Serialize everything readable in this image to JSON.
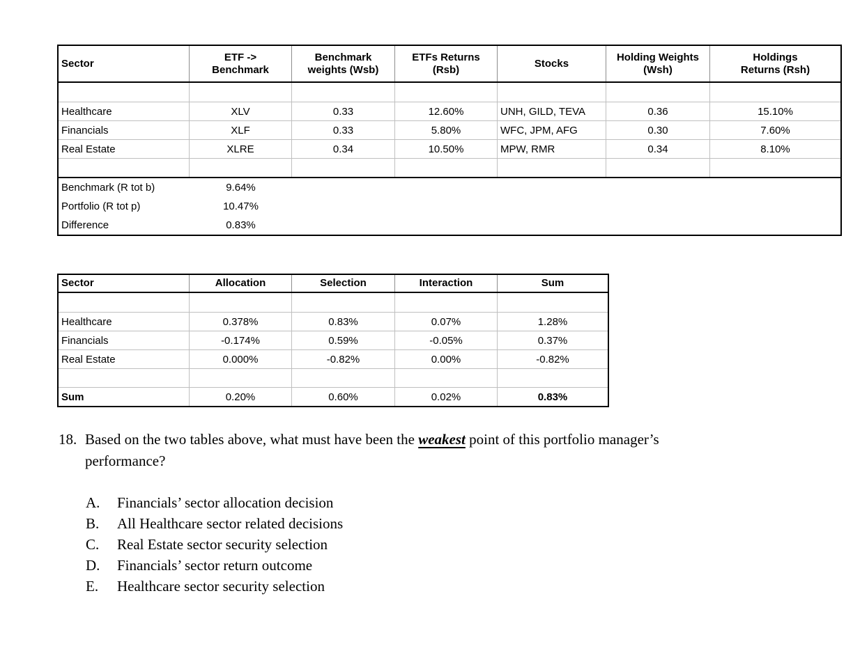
{
  "colors": {
    "background": "#ffffff",
    "text": "#000000",
    "table_border": "#000000",
    "gridline": "#bfbfbf",
    "header_divider": "#8c8c8c"
  },
  "table1": {
    "headers": [
      "Sector",
      "ETF ->\nBenchmark",
      "Benchmark\nweights (Wsb)",
      "ETFs Returns\n(Rsb)",
      "Stocks",
      "Holding Weights\n(Wsh)",
      "Holdings\nReturns (Rsh)"
    ],
    "rows": [
      [
        "Healthcare",
        "XLV",
        "0.33",
        "12.60%",
        "UNH, GILD, TEVA",
        "0.36",
        "15.10%"
      ],
      [
        "Financials",
        "XLF",
        "0.33",
        "5.80%",
        "WFC, JPM, AFG",
        "0.30",
        "7.60%"
      ],
      [
        "Real Estate",
        "XLRE",
        "0.34",
        "10.50%",
        "MPW, RMR",
        "0.34",
        "8.10%"
      ]
    ],
    "summary": [
      {
        "label": "Benchmark (R tot b)",
        "value": "9.64%"
      },
      {
        "label": "Portfolio (R tot p)",
        "value": "10.47%"
      },
      {
        "label": "Difference",
        "value": "0.83%"
      }
    ]
  },
  "table2": {
    "headers": [
      "Sector",
      "Allocation",
      "Selection",
      "Interaction",
      "Sum"
    ],
    "rows": [
      [
        "Healthcare",
        "0.378%",
        "0.83%",
        "0.07%",
        "1.28%"
      ],
      [
        "Financials",
        "-0.174%",
        "0.59%",
        "-0.05%",
        "0.37%"
      ],
      [
        "Real Estate",
        "0.000%",
        "-0.82%",
        "0.00%",
        "-0.82%"
      ]
    ],
    "sum_row": [
      "Sum",
      "0.20%",
      "0.60%",
      "0.02%",
      "0.83%"
    ]
  },
  "question": {
    "number": "18.",
    "lead": "Based on the two tables above, what must have been the ",
    "emphasis": "weakest",
    "tail": " point of this portfolio manager’s",
    "tail2": "performance?",
    "options": [
      {
        "letter": "A.",
        "text": "Financials’ sector allocation decision"
      },
      {
        "letter": "B.",
        "text": "All Healthcare sector related decisions"
      },
      {
        "letter": "C.",
        "text": "Real Estate sector security selection"
      },
      {
        "letter": "D.",
        "text": "Financials’ sector return outcome"
      },
      {
        "letter": "E.",
        "text": "Healthcare sector security selection"
      }
    ]
  }
}
